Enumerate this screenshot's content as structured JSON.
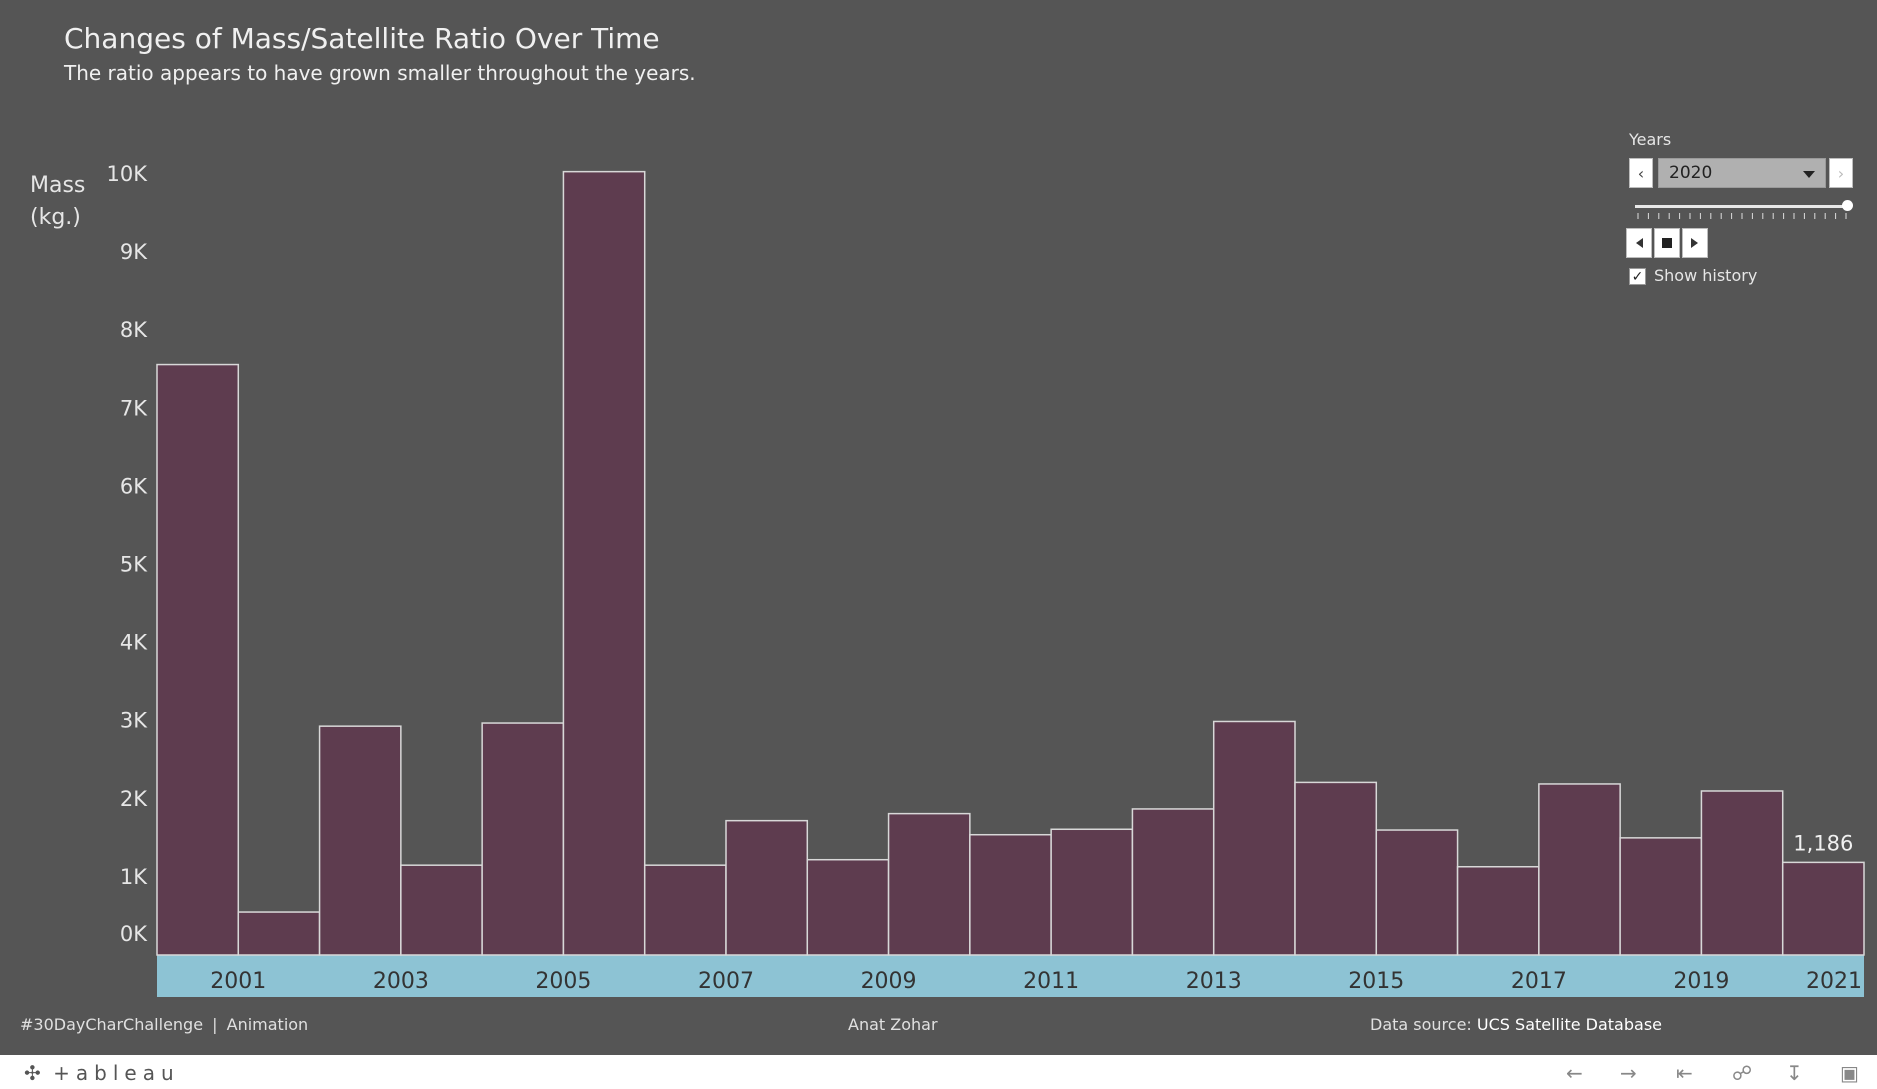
{
  "header": {
    "title": "Changes of Mass/Satellite Ratio Over Time",
    "subtitle": "The ratio appears to have grown smaller throughout the years."
  },
  "axis": {
    "ylabel_line1": "Mass",
    "ylabel_line2": "(kg.)"
  },
  "controls": {
    "years_label": "Years",
    "selected_year": "2020",
    "show_history_label": "Show history",
    "show_history_checked": true
  },
  "footer": {
    "hashtag": "#30DayCharChallenge",
    "separator": "|",
    "category": "Animation",
    "author": "Anat Zohar",
    "source_prefix": "Data source:",
    "source_name": "UCS Satellite Database"
  },
  "toolbar": {
    "logo": "+ableau"
  },
  "colors": {
    "background": "#555555",
    "bar_fill": "#5e3c4f",
    "bar_stroke": "#d8d8d8",
    "x_band": "#8dc3d4"
  },
  "chart_data": {
    "type": "bar",
    "title": "Changes of Mass/Satellite Ratio Over Time",
    "subtitle": "The ratio appears to have grown smaller throughout the years.",
    "ylabel": "Mass (kg.)",
    "ylim": [
      0,
      10000
    ],
    "yticks": [
      0,
      1000,
      2000,
      3000,
      4000,
      5000,
      6000,
      7000,
      8000,
      9000,
      10000
    ],
    "ytick_labels": [
      "0K",
      "1K",
      "2K",
      "3K",
      "4K",
      "5K",
      "6K",
      "7K",
      "8K",
      "9K",
      "10K"
    ],
    "xtick_labels": [
      "2001",
      "2003",
      "2005",
      "2007",
      "2009",
      "2011",
      "2013",
      "2015",
      "2017",
      "2019",
      "2021"
    ],
    "categories": [
      "2000",
      "2001",
      "2002",
      "2003",
      "2004",
      "2005",
      "2006",
      "2007",
      "2008",
      "2009",
      "2010",
      "2011",
      "2012",
      "2013",
      "2014",
      "2015",
      "2016",
      "2017",
      "2018",
      "2019",
      "2020"
    ],
    "values": [
      7560,
      550,
      2930,
      1150,
      2970,
      10030,
      1150,
      1720,
      1220,
      1810,
      1540,
      1610,
      1870,
      2990,
      2210,
      1600,
      1130,
      2190,
      1500,
      2100,
      1186
    ],
    "data_labels": [
      {
        "category": "2020",
        "text": "1,186"
      }
    ],
    "grid": false,
    "legend": "none"
  }
}
